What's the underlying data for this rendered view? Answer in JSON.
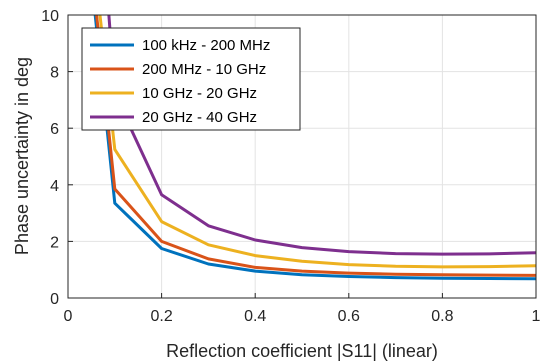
{
  "chart_data": {
    "type": "line",
    "xlabel": "Reflection coefficient |S11| (linear)",
    "ylabel": "Phase uncertainty in deg",
    "xlim": [
      0,
      1
    ],
    "ylim": [
      0,
      10
    ],
    "x_ticks": [
      "0",
      "0.2",
      "0.4",
      "0.6",
      "0.8",
      "1"
    ],
    "y_ticks": [
      "0",
      "2",
      "4",
      "6",
      "8",
      "10"
    ],
    "grid": true,
    "legend_position": "top-left",
    "series": [
      {
        "name": "100 kHz - 200 MHz",
        "color": "#0072BD",
        "points": [
          [
            0.055,
            10.5
          ],
          [
            0.1,
            3.35
          ],
          [
            0.2,
            1.75
          ],
          [
            0.3,
            1.2
          ],
          [
            0.4,
            0.95
          ],
          [
            0.5,
            0.82
          ],
          [
            0.6,
            0.76
          ],
          [
            0.7,
            0.72
          ],
          [
            0.8,
            0.7
          ],
          [
            0.9,
            0.69
          ],
          [
            1.0,
            0.68
          ]
        ]
      },
      {
        "name": "200 MHz - 10 GHz",
        "color": "#D95319",
        "points": [
          [
            0.058,
            10.5
          ],
          [
            0.1,
            3.85
          ],
          [
            0.2,
            2.0
          ],
          [
            0.3,
            1.38
          ],
          [
            0.4,
            1.08
          ],
          [
            0.5,
            0.95
          ],
          [
            0.6,
            0.88
          ],
          [
            0.7,
            0.84
          ],
          [
            0.8,
            0.82
          ],
          [
            0.9,
            0.81
          ],
          [
            1.0,
            0.8
          ]
        ]
      },
      {
        "name": "10 GHz - 20 GHz",
        "color": "#EDB120",
        "points": [
          [
            0.065,
            10.5
          ],
          [
            0.1,
            5.25
          ],
          [
            0.2,
            2.7
          ],
          [
            0.3,
            1.88
          ],
          [
            0.4,
            1.5
          ],
          [
            0.5,
            1.3
          ],
          [
            0.6,
            1.18
          ],
          [
            0.7,
            1.12
          ],
          [
            0.8,
            1.1
          ],
          [
            0.9,
            1.11
          ],
          [
            1.0,
            1.14
          ]
        ]
      },
      {
        "name": "20 GHz - 40 GHz",
        "color": "#7E2F8E",
        "points": [
          [
            0.085,
            10.5
          ],
          [
            0.1,
            7.2
          ],
          [
            0.2,
            3.65
          ],
          [
            0.3,
            2.55
          ],
          [
            0.4,
            2.05
          ],
          [
            0.5,
            1.78
          ],
          [
            0.6,
            1.64
          ],
          [
            0.7,
            1.57
          ],
          [
            0.8,
            1.55
          ],
          [
            0.9,
            1.56
          ],
          [
            1.0,
            1.6
          ]
        ]
      }
    ]
  }
}
